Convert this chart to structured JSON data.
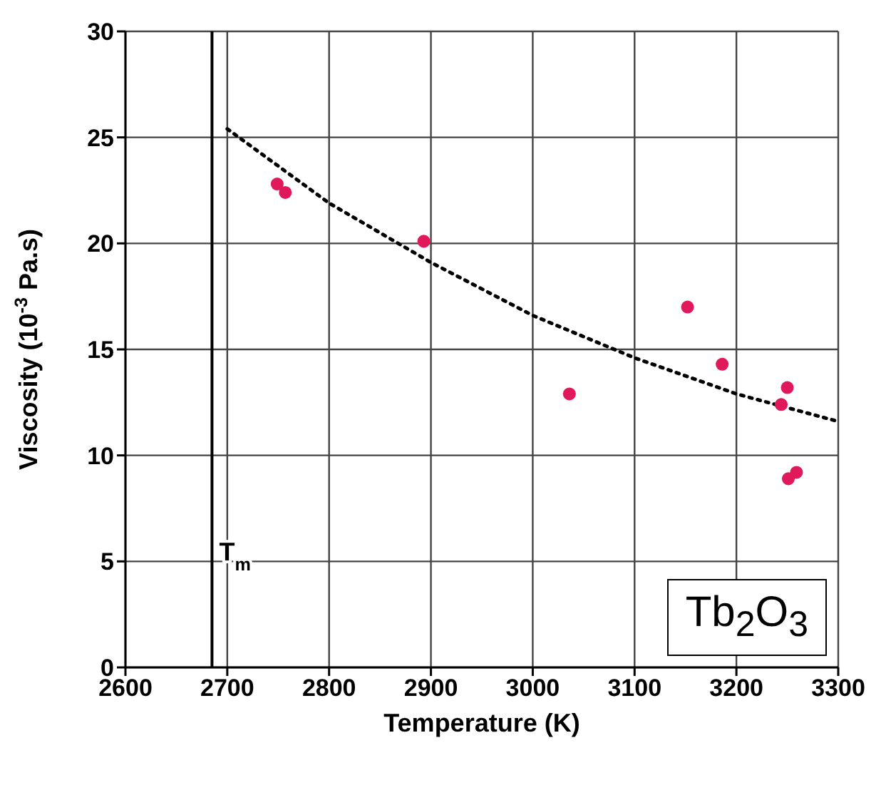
{
  "chart_data": {
    "type": "scatter",
    "xlabel": "Temperature (K)",
    "ylabel": "Viscosity (10$^{-3}$ Pa.s)",
    "xlim": [
      2600,
      3300
    ],
    "xticks": [
      2600,
      2700,
      2800,
      2900,
      3000,
      3100,
      3200,
      3300
    ],
    "ylim": [
      0,
      30
    ],
    "yticks": [
      0,
      5,
      10,
      15,
      20,
      25,
      30
    ],
    "grid": true,
    "marker": "circle",
    "series": [
      {
        "color": "#e0195a",
        "x": [
          2749,
          2757,
          2893,
          3036,
          3152,
          3186,
          3244,
          3250,
          3251,
          3259
        ],
        "values": [
          22.8,
          22.4,
          20.1,
          12.9,
          17.0,
          14.3,
          12.4,
          13.2,
          8.9,
          9.2
        ]
      },
      {
        "type": "line",
        "color": "#000000",
        "line_style": "dotted",
        "marker": "none",
        "x": [
          2700,
          2800,
          2900,
          3000,
          3100,
          3200,
          3300
        ],
        "values": [
          25.4,
          21.9,
          19.1,
          16.6,
          14.6,
          12.9,
          11.6
        ]
      }
    ],
    "ref_lines": [
      {
        "axis": "x",
        "value": 2685,
        "label": "T$_{m}$",
        "color": "#000000"
      }
    ],
    "annotations": [
      "Tb$_{2}$O$_{3}$"
    ]
  }
}
